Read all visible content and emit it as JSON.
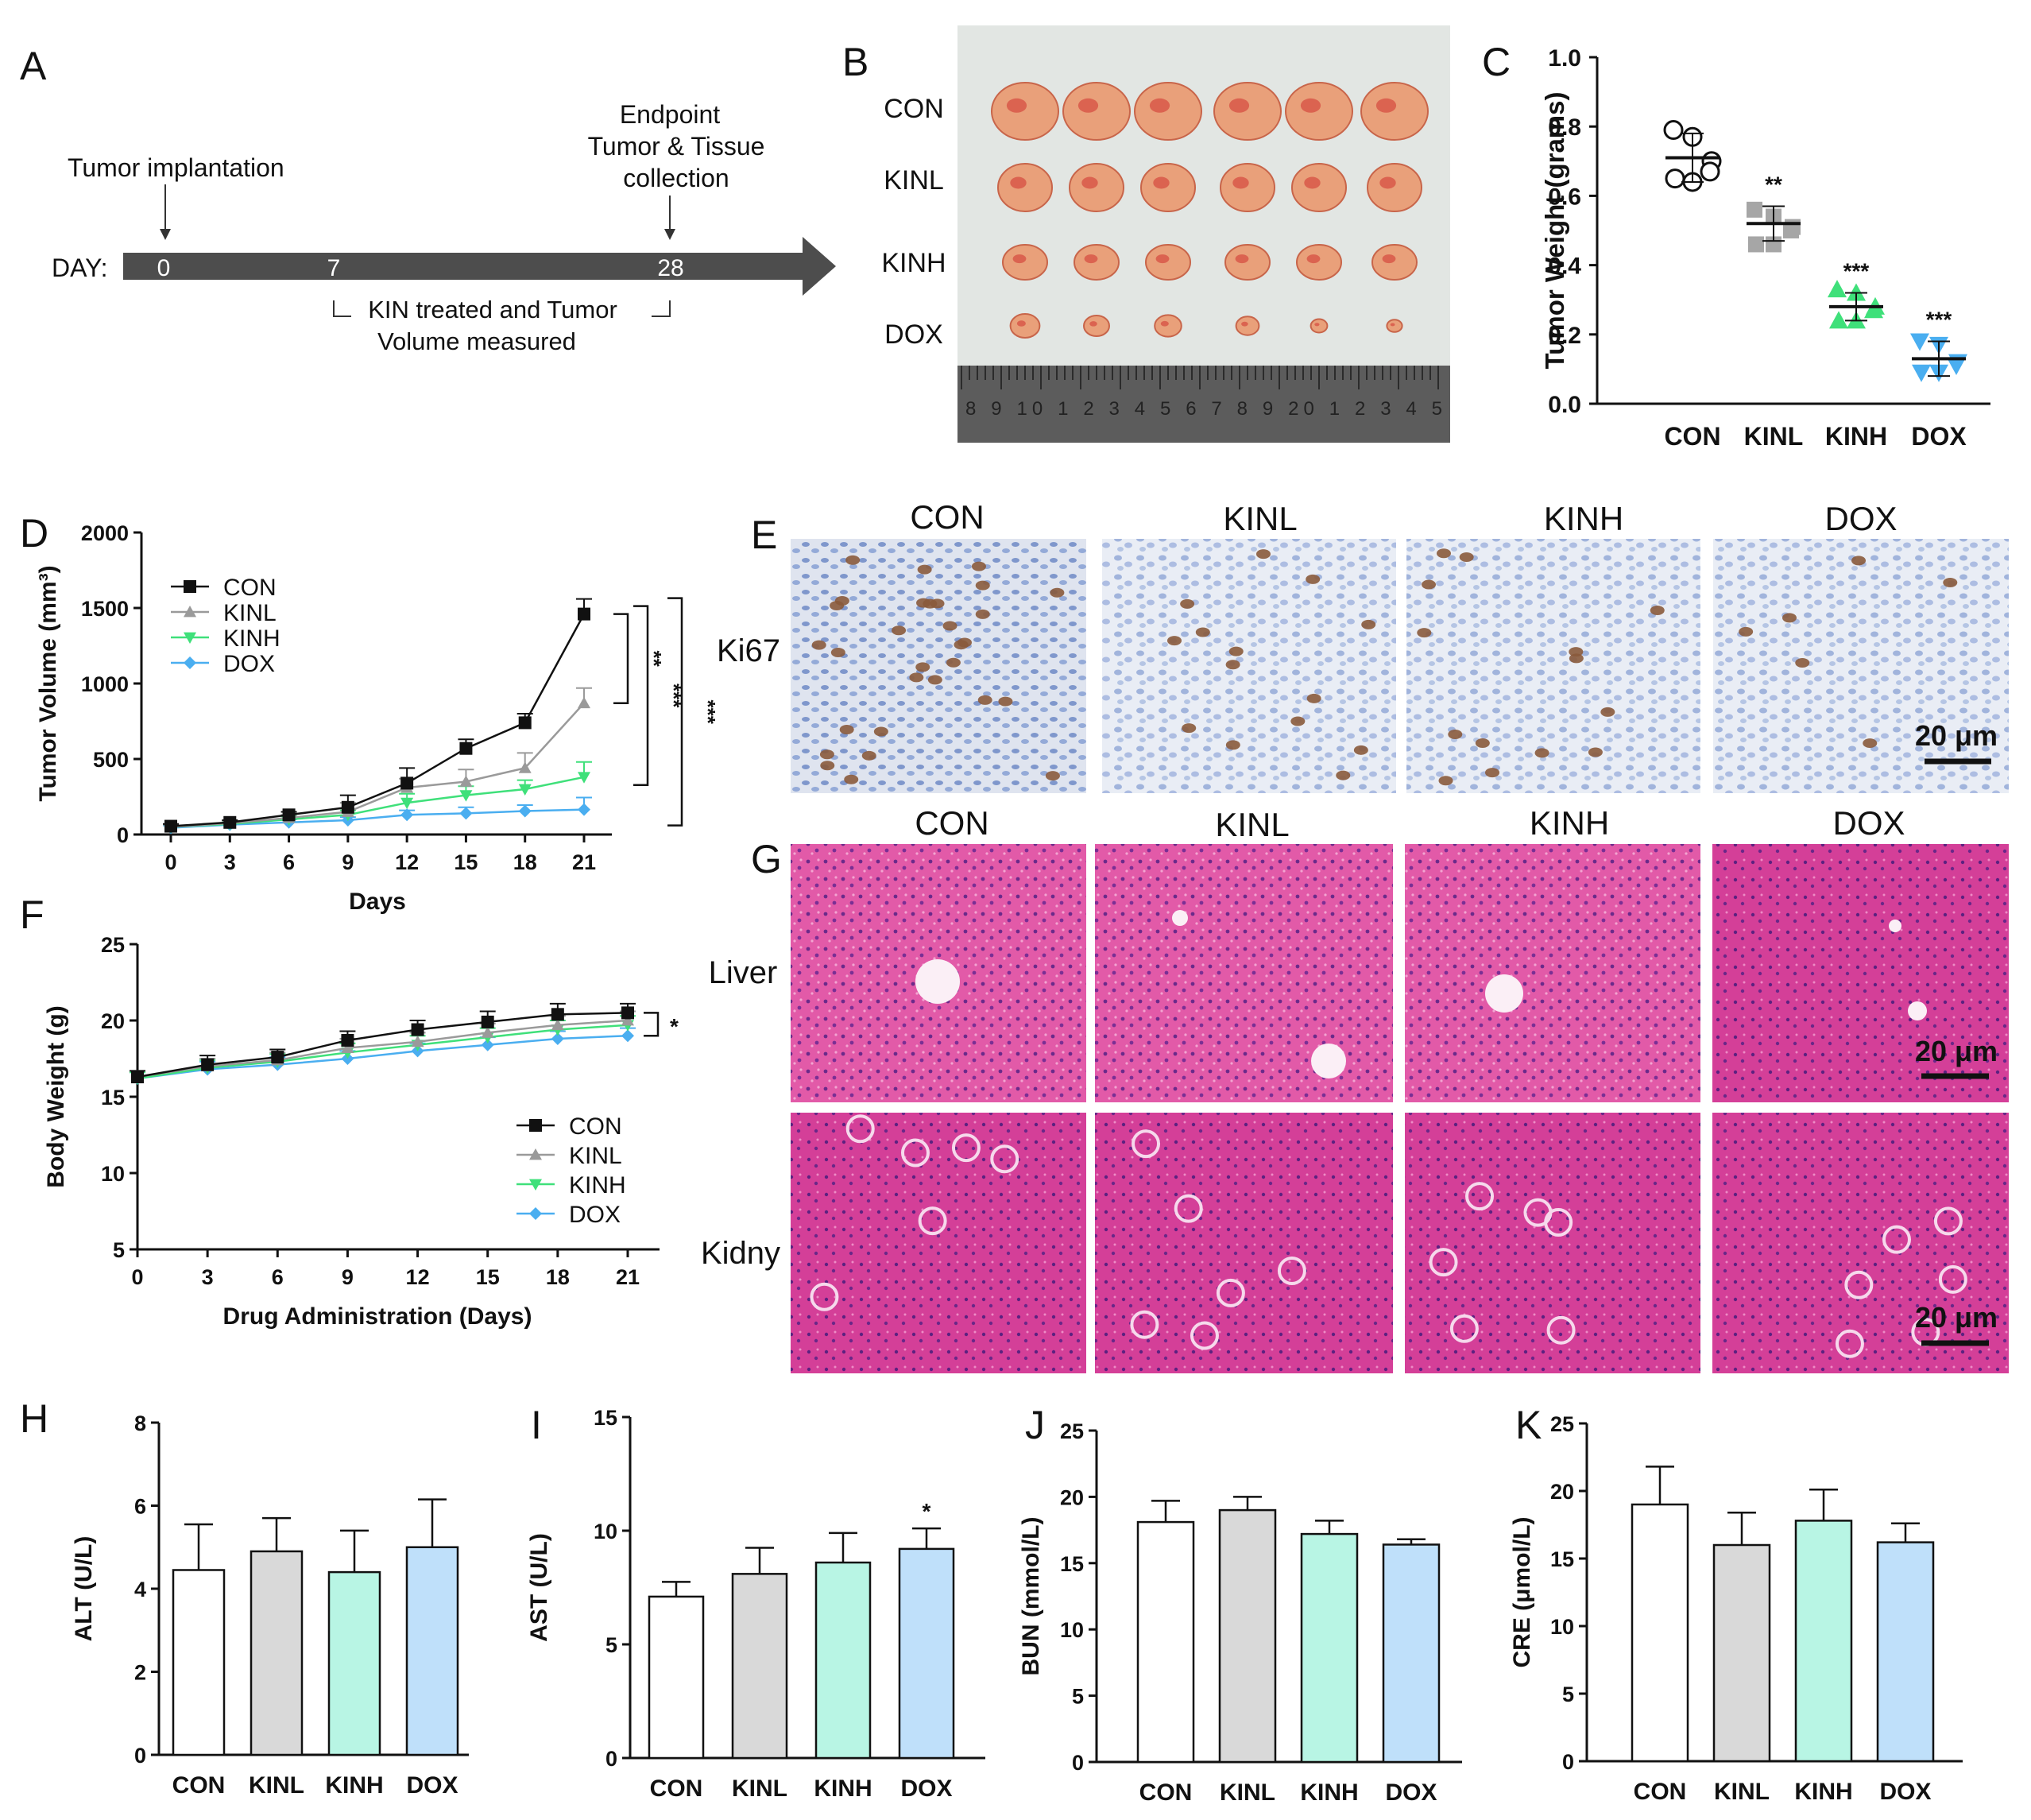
{
  "colors": {
    "con": "#111111",
    "kinl": "#9a9a9a",
    "kinh": "#3fe07a",
    "dox": "#4aaef0",
    "bar_con": "#ffffff",
    "bar_kinl": "#d9d9d9",
    "bar_kinh": "#b8f5e4",
    "bar_dox": "#bfe0fa",
    "he": "#d9469c",
    "tissue": "#d0312d"
  },
  "panel_a": {
    "letter": "A",
    "implantation": "Tumor implantation",
    "endpoint_line1": "Endpoint",
    "endpoint_line2": "Tumor & Tissue",
    "endpoint_line3": "collection",
    "day_label": "DAY:",
    "days": [
      "0",
      "7",
      "28"
    ],
    "bracket_line1": "KIN treated and Tumor",
    "bracket_line2": "Volume measured"
  },
  "panel_b": {
    "letter": "B",
    "groups": [
      "CON",
      "KINL",
      "KINH",
      "DOX"
    ],
    "ruler_text": "8 9 10 1 2 3 4 5 6 7 8 9 20 1 2 3 4 5"
  },
  "chart_data": [
    {
      "id": "C",
      "type": "scatter",
      "letter": "C",
      "ylabel": "Tumor Weight (grams)",
      "ylim": [
        0,
        1.0
      ],
      "yticks": [
        "0.0",
        "0.2",
        "0.4",
        "0.6",
        "0.8",
        "1.0"
      ],
      "categories": [
        "CON",
        "KINL",
        "KINH",
        "DOX"
      ],
      "means": [
        0.71,
        0.52,
        0.28,
        0.13
      ],
      "sd": [
        0.07,
        0.05,
        0.04,
        0.05
      ],
      "points": [
        [
          0.79,
          0.77,
          0.7,
          0.65,
          0.64,
          0.67
        ],
        [
          0.56,
          0.54,
          0.51,
          0.46,
          0.46,
          0.5
        ],
        [
          0.33,
          0.32,
          0.28,
          0.24,
          0.24,
          0.27
        ],
        [
          0.18,
          0.17,
          0.12,
          0.09,
          0.09,
          0.11
        ]
      ],
      "significance": [
        "",
        "**",
        "***",
        "***"
      ]
    },
    {
      "id": "D",
      "type": "line",
      "letter": "D",
      "xlabel": "Days",
      "ylabel": "Tumor Volume (mm³)",
      "ylim": [
        0,
        2000
      ],
      "x": [
        0,
        3,
        6,
        9,
        12,
        15,
        18,
        21
      ],
      "xticks": [
        "0",
        "3",
        "6",
        "9",
        "12",
        "15",
        "18",
        "21"
      ],
      "yticks": [
        "0",
        "500",
        "1000",
        "1500",
        "2000"
      ],
      "series": [
        {
          "name": "CON",
          "values": [
            55,
            80,
            130,
            180,
            340,
            570,
            740,
            1460
          ],
          "err": [
            15,
            15,
            20,
            80,
            100,
            60,
            60,
            100
          ]
        },
        {
          "name": "KINL",
          "values": [
            50,
            75,
            110,
            150,
            310,
            350,
            440,
            870
          ],
          "err": [
            15,
            15,
            20,
            60,
            60,
            80,
            100,
            100
          ]
        },
        {
          "name": "KINH",
          "values": [
            50,
            70,
            100,
            130,
            210,
            260,
            300,
            380
          ],
          "err": [
            15,
            15,
            20,
            30,
            60,
            60,
            60,
            100
          ]
        },
        {
          "name": "DOX",
          "values": [
            45,
            65,
            80,
            95,
            130,
            140,
            155,
            165
          ],
          "err": [
            15,
            15,
            20,
            20,
            30,
            40,
            40,
            80
          ]
        }
      ],
      "significance": [
        "**",
        "***",
        "***"
      ]
    },
    {
      "id": "F",
      "type": "line",
      "letter": "F",
      "xlabel": "Drug Administration (Days)",
      "ylabel": "Body Weight (g)",
      "ylim": [
        5,
        25
      ],
      "x": [
        0,
        3,
        6,
        9,
        12,
        15,
        18,
        21
      ],
      "xticks": [
        "0",
        "3",
        "6",
        "9",
        "12",
        "15",
        "18",
        "21"
      ],
      "yticks": [
        "5",
        "10",
        "15",
        "20",
        "25"
      ],
      "series": [
        {
          "name": "CON",
          "values": [
            16.3,
            17.1,
            17.6,
            18.7,
            19.4,
            19.9,
            20.4,
            20.5
          ],
          "err": [
            0.4,
            0.6,
            0.5,
            0.6,
            0.6,
            0.7,
            0.7,
            0.6
          ]
        },
        {
          "name": "KINL",
          "values": [
            16.3,
            17.0,
            17.4,
            18.2,
            18.6,
            19.2,
            19.7,
            20.0
          ],
          "err": [
            0.4,
            0.5,
            0.5,
            0.6,
            0.6,
            0.6,
            0.6,
            0.6
          ]
        },
        {
          "name": "KINH",
          "values": [
            16.2,
            16.9,
            17.3,
            17.9,
            18.4,
            18.9,
            19.4,
            19.7
          ],
          "err": [
            0.4,
            0.5,
            0.5,
            0.6,
            0.6,
            0.6,
            0.6,
            0.6
          ]
        },
        {
          "name": "DOX",
          "values": [
            16.2,
            16.8,
            17.1,
            17.5,
            18.0,
            18.4,
            18.8,
            19.0
          ],
          "err": [
            0.4,
            0.5,
            0.5,
            0.5,
            0.5,
            0.5,
            0.5,
            0.5
          ]
        }
      ],
      "significance": [
        "*"
      ]
    },
    {
      "id": "H",
      "type": "bar",
      "letter": "H",
      "ylabel": "ALT (U/L)",
      "ylim": [
        0,
        8
      ],
      "yticks": [
        "0",
        "2",
        "4",
        "6",
        "8"
      ],
      "categories": [
        "CON",
        "KINL",
        "KINH",
        "DOX"
      ],
      "values": [
        4.45,
        4.9,
        4.4,
        5.0
      ],
      "err": [
        1.1,
        0.8,
        1.0,
        1.15
      ],
      "significance": [
        "",
        "",
        "",
        ""
      ]
    },
    {
      "id": "I",
      "type": "bar",
      "letter": "I",
      "ylabel": "AST (U/L)",
      "ylim": [
        0,
        15
      ],
      "yticks": [
        "0",
        "5",
        "10",
        "15"
      ],
      "categories": [
        "CON",
        "KINL",
        "KINH",
        "DOX"
      ],
      "values": [
        7.1,
        8.1,
        8.6,
        9.2
      ],
      "err": [
        0.65,
        1.15,
        1.3,
        0.9
      ],
      "significance": [
        "",
        "",
        "",
        "*"
      ]
    },
    {
      "id": "J",
      "type": "bar",
      "letter": "J",
      "ylabel": "BUN (mmol/L)",
      "ylim": [
        0,
        25
      ],
      "yticks": [
        "0",
        "5",
        "10",
        "15",
        "20",
        "25"
      ],
      "categories": [
        "CON",
        "KINL",
        "KINH",
        "DOX"
      ],
      "values": [
        18.1,
        19.0,
        17.2,
        16.4
      ],
      "err": [
        1.6,
        1.0,
        1.0,
        0.4
      ],
      "significance": [
        "",
        "",
        "",
        ""
      ]
    },
    {
      "id": "K",
      "type": "bar",
      "letter": "K",
      "ylabel": "CRE (μmol/L)",
      "ylim": [
        0,
        25
      ],
      "yticks": [
        "0",
        "5",
        "10",
        "15",
        "20",
        "25"
      ],
      "categories": [
        "CON",
        "KINL",
        "KINH",
        "DOX"
      ],
      "values": [
        19.0,
        16.0,
        17.8,
        16.2
      ],
      "err": [
        2.8,
        2.4,
        2.3,
        1.4
      ],
      "significance": [
        "",
        "",
        "",
        ""
      ]
    }
  ],
  "panel_e": {
    "letter": "E",
    "row_label": "Ki67",
    "columns": [
      "CON",
      "KINL",
      "KINH",
      "DOX"
    ],
    "scale_bar": "20 μm"
  },
  "panel_g": {
    "letter": "G",
    "row_labels": [
      "Liver",
      "Kidny"
    ],
    "columns": [
      "CON",
      "KINL",
      "KINH",
      "DOX"
    ],
    "scale_bar": "20 μm"
  }
}
